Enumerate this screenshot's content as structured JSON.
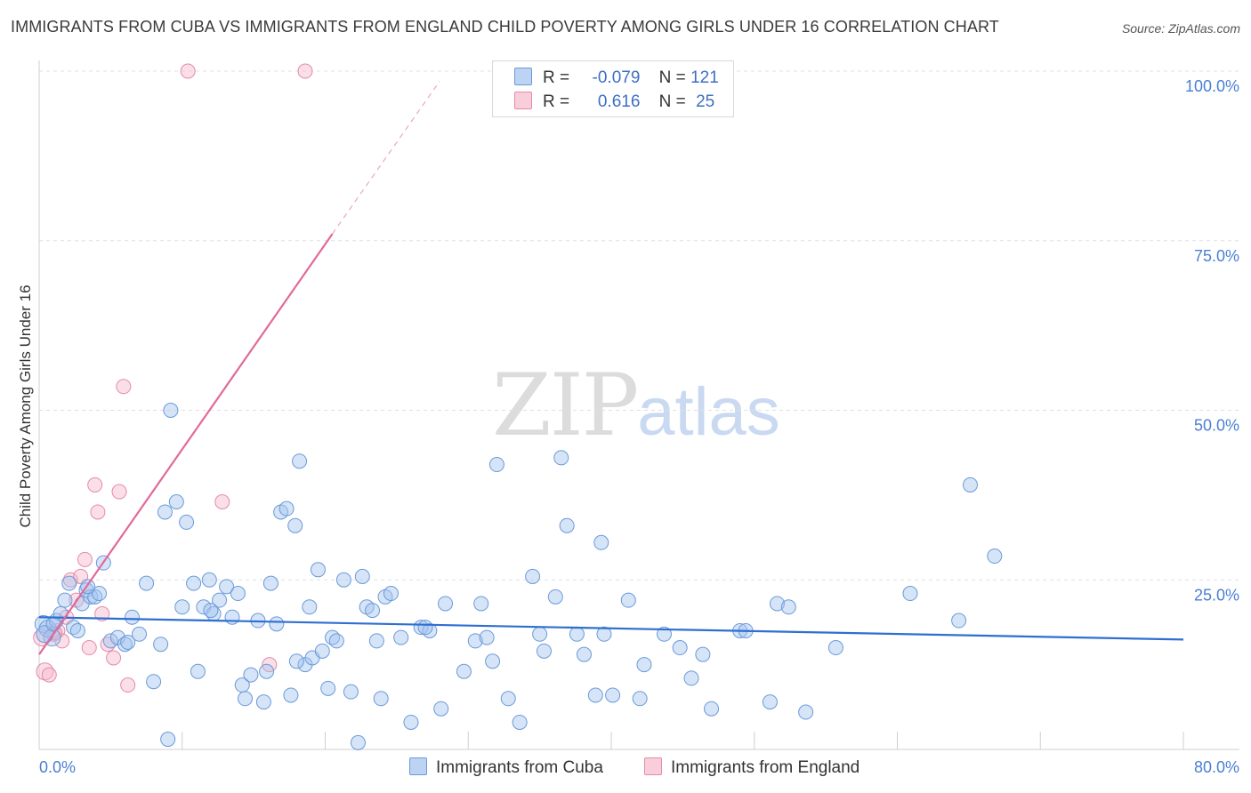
{
  "header": {
    "title": "IMMIGRANTS FROM CUBA VS IMMIGRANTS FROM ENGLAND CHILD POVERTY AMONG GIRLS UNDER 16 CORRELATION CHART",
    "source": "Source: ZipAtlas.com"
  },
  "watermark": {
    "zip": "ZIP",
    "atlas": "atlas"
  },
  "legend": {
    "cuba": {
      "r_label": "R =",
      "r_value": "-0.079",
      "n_label": "N =",
      "n_value": "121",
      "color": "#a4c4f0"
    },
    "england": {
      "r_label": "R =",
      "r_value": "0.616",
      "n_label": "N =",
      "n_value": "25",
      "color": "#f6b8cc"
    }
  },
  "bottom_legend": {
    "cuba": "Immigrants from Cuba",
    "england": "Immigrants from England"
  },
  "chart_data": {
    "type": "scatter",
    "xlabel": "",
    "ylabel": "Child Poverty Among Girls Under 16",
    "xlim": [
      0,
      80
    ],
    "ylim": [
      0,
      100
    ],
    "x_tick_labels": [
      "0.0%",
      "80.0%"
    ],
    "y_tick_labels": [
      "100.0%",
      "75.0%",
      "50.0%",
      "25.0%"
    ],
    "y_ticks": [
      100,
      75,
      50,
      25
    ],
    "series": [
      {
        "name": "Immigrants from Cuba",
        "color": "#6a9ad8",
        "trend": {
          "x0": 0,
          "y0": 19.5,
          "x1": 80,
          "y1": 16.2
        },
        "points": [
          [
            0.3,
            18.5
          ],
          [
            0.6,
            17.8
          ],
          [
            0.9,
            16.5
          ],
          [
            1.2,
            19.0
          ],
          [
            1.5,
            20.0
          ],
          [
            1.8,
            22.0
          ],
          [
            2.1,
            24.5
          ],
          [
            2.4,
            18.0
          ],
          [
            2.7,
            17.5
          ],
          [
            3.0,
            21.5
          ],
          [
            3.3,
            23.5
          ],
          [
            3.6,
            22.5
          ],
          [
            3.9,
            22.5
          ],
          [
            4.2,
            23.0
          ],
          [
            4.5,
            27.5
          ],
          [
            5.0,
            16.0
          ],
          [
            5.5,
            16.5
          ],
          [
            6.0,
            15.5
          ],
          [
            6.5,
            19.5
          ],
          [
            7.0,
            17.0
          ],
          [
            7.5,
            24.5
          ],
          [
            8.0,
            10.0
          ],
          [
            8.5,
            15.5
          ],
          [
            8.8,
            35.0
          ],
          [
            9.2,
            50.0
          ],
          [
            9.6,
            36.5
          ],
          [
            10.0,
            21.0
          ],
          [
            10.3,
            33.5
          ],
          [
            10.8,
            24.5
          ],
          [
            11.1,
            11.5
          ],
          [
            11.5,
            21.0
          ],
          [
            11.9,
            25.0
          ],
          [
            12.2,
            20.0
          ],
          [
            12.6,
            22.0
          ],
          [
            13.1,
            24.0
          ],
          [
            13.5,
            19.5
          ],
          [
            13.9,
            23.0
          ],
          [
            14.2,
            9.5
          ],
          [
            14.4,
            7.5
          ],
          [
            14.8,
            11.0
          ],
          [
            15.3,
            19.0
          ],
          [
            15.7,
            7.0
          ],
          [
            15.9,
            11.5
          ],
          [
            16.2,
            24.5
          ],
          [
            16.6,
            18.5
          ],
          [
            16.9,
            35.0
          ],
          [
            17.3,
            35.5
          ],
          [
            17.6,
            8.0
          ],
          [
            17.9,
            33.0
          ],
          [
            18.2,
            42.5
          ],
          [
            18.6,
            12.5
          ],
          [
            18.9,
            21.0
          ],
          [
            19.1,
            13.5
          ],
          [
            19.5,
            26.5
          ],
          [
            19.8,
            14.5
          ],
          [
            20.2,
            9.0
          ],
          [
            20.5,
            16.5
          ],
          [
            20.8,
            16.0
          ],
          [
            21.3,
            25.0
          ],
          [
            21.8,
            8.5
          ],
          [
            22.3,
            1.0
          ],
          [
            22.6,
            25.5
          ],
          [
            22.9,
            21.0
          ],
          [
            23.3,
            20.5
          ],
          [
            23.6,
            16.0
          ],
          [
            23.9,
            7.5
          ],
          [
            24.2,
            22.5
          ],
          [
            24.6,
            23.0
          ],
          [
            25.3,
            16.5
          ],
          [
            26.0,
            4.0
          ],
          [
            26.7,
            18.0
          ],
          [
            27.3,
            17.5
          ],
          [
            28.1,
            6.0
          ],
          [
            28.4,
            21.5
          ],
          [
            29.7,
            11.5
          ],
          [
            30.5,
            16.0
          ],
          [
            30.9,
            21.5
          ],
          [
            31.3,
            16.5
          ],
          [
            31.7,
            13.0
          ],
          [
            32.0,
            42.0
          ],
          [
            32.8,
            7.5
          ],
          [
            33.6,
            4.0
          ],
          [
            34.5,
            25.5
          ],
          [
            35.0,
            17.0
          ],
          [
            35.3,
            14.5
          ],
          [
            36.1,
            22.5
          ],
          [
            36.5,
            43.0
          ],
          [
            36.9,
            33.0
          ],
          [
            37.6,
            17.0
          ],
          [
            38.1,
            14.0
          ],
          [
            38.9,
            8.0
          ],
          [
            39.3,
            30.5
          ],
          [
            39.5,
            17.0
          ],
          [
            40.1,
            8.0
          ],
          [
            41.2,
            22.0
          ],
          [
            42.0,
            7.5
          ],
          [
            42.3,
            12.5
          ],
          [
            43.7,
            17.0
          ],
          [
            44.8,
            15.0
          ],
          [
            45.6,
            10.5
          ],
          [
            46.4,
            14.0
          ],
          [
            47.0,
            6.0
          ],
          [
            49.0,
            17.5
          ],
          [
            49.4,
            17.5
          ],
          [
            51.1,
            7.0
          ],
          [
            51.6,
            21.5
          ],
          [
            52.4,
            21.0
          ],
          [
            53.6,
            5.5
          ],
          [
            55.7,
            15.0
          ],
          [
            60.9,
            23.0
          ],
          [
            64.3,
            19.0
          ],
          [
            65.1,
            39.0
          ],
          [
            66.8,
            28.5
          ],
          [
            0.4,
            17.0
          ],
          [
            1.0,
            18.5
          ],
          [
            3.4,
            24.0
          ],
          [
            6.2,
            15.8
          ],
          [
            9.0,
            1.5
          ],
          [
            12.0,
            20.5
          ],
          [
            18.0,
            13.0
          ],
          [
            27.0,
            18.0
          ]
        ]
      },
      {
        "name": "Immigrants from England",
        "color": "#e58aa9",
        "trend": {
          "x0": 0,
          "y0": 14.0,
          "x1": 20.5,
          "y1": 76.0,
          "dash_to_x": 28.0,
          "dash_to_y": 98.5
        },
        "points": [
          [
            0.2,
            16.5
          ],
          [
            0.4,
            11.5
          ],
          [
            0.7,
            11.0
          ],
          [
            1.0,
            17.0
          ],
          [
            1.3,
            17.5
          ],
          [
            1.6,
            16.0
          ],
          [
            1.9,
            19.5
          ],
          [
            2.2,
            25.0
          ],
          [
            2.6,
            22.0
          ],
          [
            2.9,
            25.5
          ],
          [
            3.2,
            28.0
          ],
          [
            3.5,
            15.0
          ],
          [
            3.9,
            39.0
          ],
          [
            4.1,
            35.0
          ],
          [
            4.4,
            20.0
          ],
          [
            4.8,
            15.5
          ],
          [
            5.2,
            13.5
          ],
          [
            5.6,
            38.0
          ],
          [
            5.9,
            53.5
          ],
          [
            6.2,
            9.5
          ],
          [
            10.4,
            100.0
          ],
          [
            12.8,
            36.5
          ],
          [
            16.1,
            12.5
          ],
          [
            18.6,
            100.0
          ],
          [
            1.1,
            17.2
          ]
        ]
      }
    ]
  }
}
